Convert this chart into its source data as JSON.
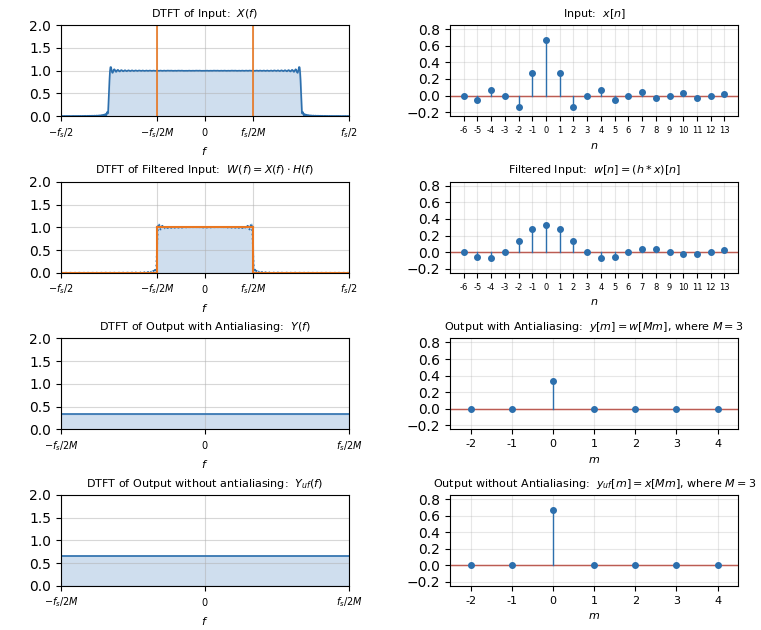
{
  "M": 3,
  "n_range": [
    -6,
    13
  ],
  "m_range": [
    -2,
    4
  ],
  "title_row1_left": "DTFT of Input:  $X(f)$",
  "title_row1_right": "Input:  $x[n]$",
  "title_row2_left": "DTFT of Filtered Input:  $W(f) = X(f)\\cdot H(f)$",
  "title_row2_right": "Filtered Input:  $w[n] = (h * x)[n]$",
  "title_row3_left": "DTFT of Output with Antialiasing:  $Y(f)$",
  "title_row3_right": "Output with Antialiasing:  $y[m] = w[Mm]$, where $M = 3$",
  "title_row4_left": "DTFT of Output without antialiasing:  $Y_{uf}(f)$",
  "title_row4_right": "Output without Antialiasing:  $y_{uf}[m] = x[Mm]$, where $M = 3$",
  "fill_color": "#a8c4e0",
  "line_color": "#2c6fad",
  "orange_color": "#e87722",
  "red_color": "#c0392b"
}
